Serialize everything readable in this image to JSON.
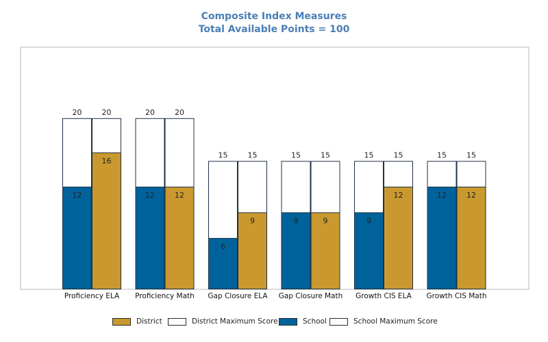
{
  "title": "Composite Index Measures",
  "subtitle": "Total Available Points = 100",
  "colors": {
    "school": "#00629a",
    "district": "#c9992f",
    "max_fill": "#ffffff",
    "outline": "#1f2f45"
  },
  "legend": [
    {
      "label": "District",
      "color": "#c9992f"
    },
    {
      "label": "District Maximum Score",
      "color": "#ffffff"
    },
    {
      "label": "School",
      "color": "#00629a"
    },
    {
      "label": "School Maximum Score",
      "color": "#ffffff"
    }
  ],
  "chart_data": {
    "type": "bar",
    "categories": [
      "Proficiency ELA",
      "Proficiency Math",
      "Gap Closure ELA",
      "Gap Closure Math",
      "Growth CIS ELA",
      "Growth CIS Math"
    ],
    "series": [
      {
        "name": "School",
        "values": [
          12,
          12,
          6,
          9,
          9,
          12
        ]
      },
      {
        "name": "School Maximum Score",
        "values": [
          20,
          20,
          15,
          15,
          15,
          15
        ]
      },
      {
        "name": "District",
        "values": [
          16,
          12,
          9,
          9,
          12,
          12
        ]
      },
      {
        "name": "District Maximum Score",
        "values": [
          20,
          20,
          15,
          15,
          15,
          15
        ]
      }
    ],
    "ylim": [
      0,
      28.3
    ],
    "grid": false,
    "legend_position": "bottom"
  }
}
